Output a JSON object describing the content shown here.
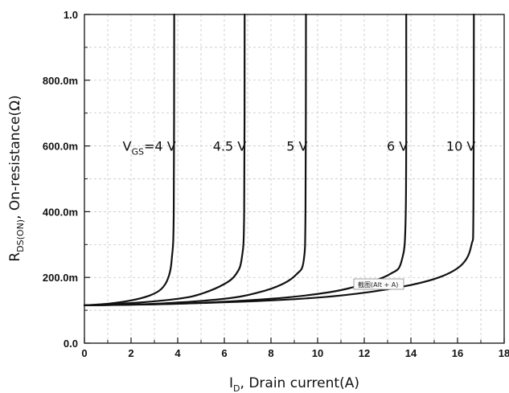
{
  "chart_data": {
    "type": "line",
    "xlabel": {
      "main": "I",
      "sub": "D",
      "rest": ", Drain current(A)"
    },
    "ylabel": {
      "main": "R",
      "sub": "DS(ON)",
      "rest": ", On-resistance(Ω)"
    },
    "xlim": [
      0,
      18
    ],
    "ylim": [
      0.0,
      1.0
    ],
    "x_ticks": [
      "0",
      "2",
      "4",
      "6",
      "8",
      "10",
      "12",
      "14",
      "16",
      "18"
    ],
    "y_ticks": [
      "0.0",
      "200.0m",
      "400.0m",
      "600.0m",
      "800.0m",
      "1.0"
    ],
    "grid": true,
    "series": [
      {
        "name": "VGS=4 V",
        "label_main": "V",
        "label_sub": "GS",
        "label_rest": "=4 V",
        "points": [
          [
            0,
            0.115
          ],
          [
            1,
            0.12
          ],
          [
            2,
            0.13
          ],
          [
            2.8,
            0.145
          ],
          [
            3.3,
            0.165
          ],
          [
            3.6,
            0.2
          ],
          [
            3.75,
            0.26
          ],
          [
            3.83,
            0.4
          ],
          [
            3.85,
            1.0
          ]
        ]
      },
      {
        "name": "4.5 V",
        "label_main": "4.5 V",
        "label_sub": "",
        "label_rest": "",
        "points": [
          [
            0,
            0.115
          ],
          [
            2,
            0.122
          ],
          [
            4,
            0.135
          ],
          [
            5,
            0.15
          ],
          [
            6,
            0.18
          ],
          [
            6.5,
            0.21
          ],
          [
            6.75,
            0.26
          ],
          [
            6.85,
            0.4
          ],
          [
            6.87,
            1.0
          ]
        ]
      },
      {
        "name": "5 V",
        "label_main": "5 V",
        "label_sub": "",
        "label_rest": "",
        "points": [
          [
            0,
            0.115
          ],
          [
            3,
            0.12
          ],
          [
            6,
            0.135
          ],
          [
            7.5,
            0.155
          ],
          [
            8.5,
            0.18
          ],
          [
            9.1,
            0.21
          ],
          [
            9.4,
            0.25
          ],
          [
            9.48,
            0.4
          ],
          [
            9.5,
            1.0
          ]
        ]
      },
      {
        "name": "6 V",
        "label_main": "6 V",
        "label_sub": "",
        "label_rest": "",
        "points": [
          [
            0,
            0.115
          ],
          [
            4,
            0.12
          ],
          [
            8,
            0.135
          ],
          [
            10.5,
            0.155
          ],
          [
            12,
            0.18
          ],
          [
            13.1,
            0.21
          ],
          [
            13.6,
            0.25
          ],
          [
            13.78,
            0.4
          ],
          [
            13.8,
            1.0
          ]
        ]
      },
      {
        "name": "10 V",
        "label_main": "10 V",
        "label_sub": "",
        "label_rest": "",
        "points": [
          [
            0,
            0.115
          ],
          [
            4,
            0.12
          ],
          [
            8,
            0.13
          ],
          [
            11,
            0.145
          ],
          [
            13.5,
            0.17
          ],
          [
            15.2,
            0.2
          ],
          [
            16.2,
            0.24
          ],
          [
            16.6,
            0.3
          ],
          [
            16.68,
            0.4
          ],
          [
            16.7,
            1.0
          ]
        ]
      }
    ]
  },
  "tooltip": {
    "text": "截图(Alt + A)"
  }
}
